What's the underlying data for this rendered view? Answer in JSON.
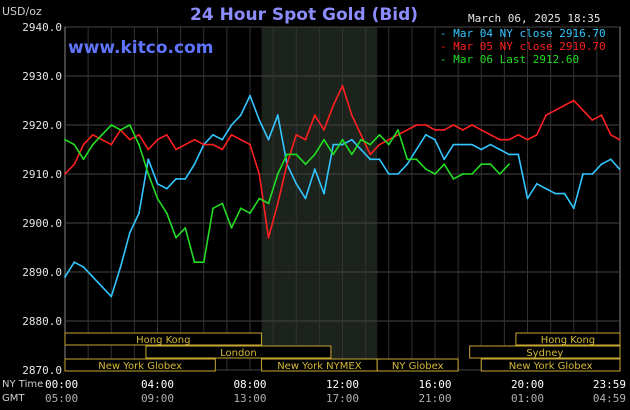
{
  "header": {
    "unit": "USD/oz",
    "title": "24 Hour Spot Gold (Bid)",
    "date": "March 06, 2025 18:35",
    "site": "www.kitco.com"
  },
  "legend": [
    {
      "label": "Mar 04 NY close 2916.70",
      "color": "#33c6ff"
    },
    {
      "label": "Mar 05 NY close 2910.70",
      "color": "#ff2020"
    },
    {
      "label": "Mar 06 Last 2912.60",
      "color": "#22dd22"
    }
  ],
  "markets": [
    {
      "name": "Hong Kong",
      "start": 0,
      "end": 8.5,
      "row": 0
    },
    {
      "name": "Hong Kong",
      "start": 19.5,
      "end": 24,
      "row": 0
    },
    {
      "name": "London",
      "start": 3.5,
      "end": 11.5,
      "row": 1
    },
    {
      "name": "Sydney",
      "start": 17.5,
      "end": 24,
      "row": 1
    },
    {
      "name": "New York Globex",
      "start": 0,
      "end": 6.5,
      "row": 2
    },
    {
      "name": "New York NYMEX",
      "start": 8.5,
      "end": 13.5,
      "row": 2
    },
    {
      "name": "NY Globex",
      "start": 13.5,
      "end": 17,
      "row": 2
    },
    {
      "name": "New York Globex",
      "start": 18,
      "end": 24,
      "row": 2
    }
  ],
  "row_labels": {
    "ny": "NY Time",
    "gmt": "GMT"
  },
  "gmt_ticks": [
    "05:00",
    "09:00",
    "13:00",
    "17:00",
    "21:00",
    "01:00",
    "04:59"
  ],
  "chart_data": {
    "type": "line",
    "title": "24 Hour Spot Gold (Bid)",
    "ylabel": "USD/oz",
    "ylim": [
      2870,
      2940
    ],
    "yticks": [
      2870,
      2880,
      2890,
      2900,
      2910,
      2920,
      2930,
      2940
    ],
    "xlim": [
      0,
      24
    ],
    "xtick_labels": [
      "00:00",
      "04:00",
      "08:00",
      "12:00",
      "16:00",
      "20:00",
      "23:59"
    ],
    "xtick_hours": [
      0,
      4,
      8,
      12,
      16,
      20,
      24
    ],
    "highlight_hours": [
      8.5,
      13.5
    ],
    "grid": true,
    "series": [
      {
        "name": "Mar 04 NY close 2916.70",
        "color": "#33c6ff",
        "x": [
          0,
          0.4,
          0.8,
          1.2,
          1.6,
          2.0,
          2.4,
          2.8,
          3.2,
          3.6,
          4.0,
          4.4,
          4.8,
          5.2,
          5.6,
          6.0,
          6.4,
          6.8,
          7.2,
          7.6,
          8.0,
          8.4,
          8.8,
          9.2,
          9.6,
          10.0,
          10.4,
          10.8,
          11.2,
          11.6,
          12.0,
          12.4,
          12.8,
          13.2,
          13.6,
          14.0,
          14.4,
          14.8,
          15.2,
          15.6,
          16.0,
          16.4,
          16.8,
          17.2,
          17.6,
          18.0,
          18.4,
          18.8,
          19.2,
          19.6,
          20.0,
          20.4,
          20.8,
          21.2,
          21.6,
          22.0,
          22.4,
          22.8,
          23.2,
          23.6,
          23.98
        ],
        "values": [
          2889,
          2892,
          2891,
          2889,
          2887,
          2885,
          2891,
          2898,
          2902,
          2913,
          2908,
          2907,
          2909,
          2909,
          2912,
          2916,
          2918,
          2917,
          2920,
          2922,
          2926,
          2921,
          2917,
          2922,
          2912,
          2908,
          2905,
          2911,
          2906,
          2916,
          2916,
          2917,
          2915,
          2913,
          2913,
          2910,
          2910,
          2912,
          2915,
          2918,
          2917,
          2913,
          2916,
          2916,
          2916,
          2915,
          2916,
          2915,
          2914,
          2914,
          2905,
          2908,
          2907,
          2906,
          2906,
          2903,
          2910,
          2910,
          2912,
          2913,
          2911
        ]
      },
      {
        "name": "Mar 05 NY close 2910.70",
        "color": "#ff2020",
        "x": [
          0,
          0.4,
          0.8,
          1.2,
          1.6,
          2.0,
          2.4,
          2.8,
          3.2,
          3.6,
          4.0,
          4.4,
          4.8,
          5.2,
          5.6,
          6.0,
          6.4,
          6.8,
          7.2,
          7.6,
          8.0,
          8.4,
          8.8,
          9.2,
          9.6,
          10.0,
          10.4,
          10.8,
          11.2,
          11.6,
          12.0,
          12.4,
          12.8,
          13.2,
          13.6,
          14.0,
          14.4,
          14.8,
          15.2,
          15.6,
          16.0,
          16.4,
          16.8,
          17.2,
          17.6,
          18.0,
          18.4,
          18.8,
          19.2,
          19.6,
          20.0,
          20.4,
          20.8,
          21.2,
          21.6,
          22.0,
          22.4,
          22.8,
          23.2,
          23.6,
          23.98
        ],
        "values": [
          2910,
          2912,
          2916,
          2918,
          2917,
          2916,
          2919,
          2917,
          2918,
          2915,
          2917,
          2918,
          2915,
          2916,
          2917,
          2916,
          2916,
          2915,
          2918,
          2917,
          2916,
          2910,
          2897,
          2904,
          2912,
          2918,
          2917,
          2922,
          2919,
          2924,
          2928,
          2922,
          2918,
          2914,
          2916,
          2917,
          2918,
          2919,
          2920,
          2920,
          2919,
          2919,
          2920,
          2919,
          2920,
          2919,
          2918,
          2917,
          2917,
          2918,
          2917,
          2918,
          2922,
          2923,
          2924,
          2925,
          2923,
          2921,
          2922,
          2918,
          2917
        ]
      },
      {
        "name": "Mar 06 Last 2912.60",
        "color": "#22dd22",
        "x": [
          0,
          0.4,
          0.8,
          1.2,
          1.6,
          2.0,
          2.4,
          2.8,
          3.2,
          3.6,
          4.0,
          4.4,
          4.8,
          5.2,
          5.6,
          6.0,
          6.4,
          6.8,
          7.2,
          7.6,
          8.0,
          8.4,
          8.8,
          9.2,
          9.6,
          10.0,
          10.4,
          10.8,
          11.2,
          11.6,
          12.0,
          12.4,
          12.8,
          13.2,
          13.6,
          14.0,
          14.4,
          14.8,
          15.2,
          15.6,
          16.0,
          16.4,
          16.8,
          17.2,
          17.6,
          18.0,
          18.4,
          18.8,
          19.2
        ],
        "values": [
          2917,
          2916,
          2913,
          2916,
          2918,
          2920,
          2919,
          2920,
          2916,
          2910,
          2905,
          2902,
          2897,
          2899,
          2892,
          2892,
          2903,
          2904,
          2899,
          2903,
          2902,
          2905,
          2904,
          2910,
          2914,
          2914,
          2912,
          2914,
          2917,
          2914,
          2917,
          2914,
          2917,
          2916,
          2918,
          2916,
          2919,
          2913,
          2913,
          2911,
          2910,
          2912,
          2909,
          2910,
          2910,
          2912,
          2912,
          2910,
          2912
        ]
      }
    ]
  }
}
